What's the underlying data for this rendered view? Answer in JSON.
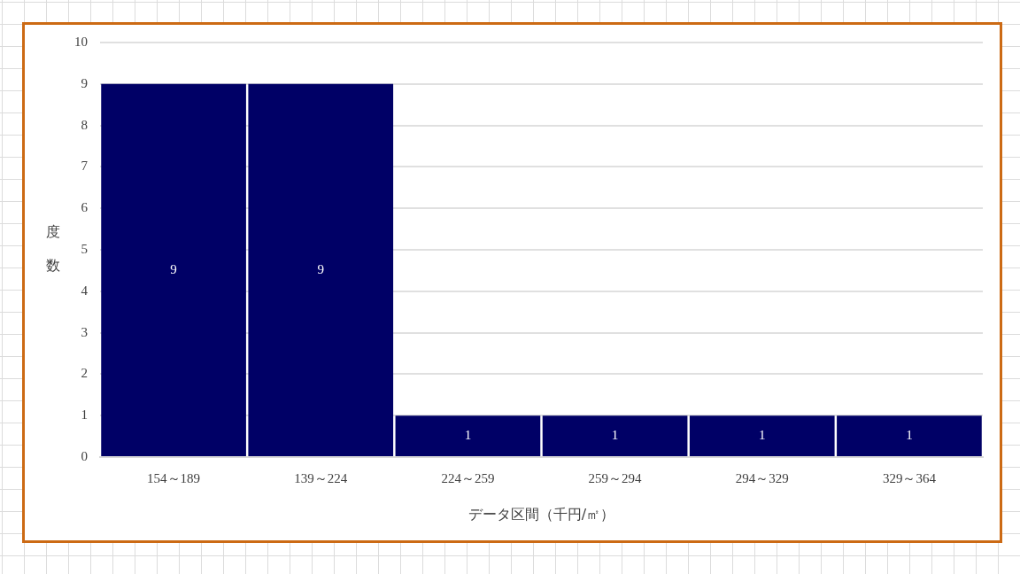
{
  "chart_data": {
    "type": "bar",
    "xlabel": "データ区間（千円/㎡）",
    "ylabel": "度数",
    "categories": [
      "154～189",
      "139～224",
      "224～259",
      "259～294",
      "294～329",
      "329～364"
    ],
    "values": [
      9,
      9,
      1,
      1,
      1,
      1
    ],
    "color": "#000066",
    "ylim": [
      0,
      10
    ],
    "yticks": [
      0,
      1,
      2,
      3,
      4,
      5,
      6,
      7,
      8,
      9,
      10
    ],
    "grid": "y",
    "data_labels": true
  }
}
